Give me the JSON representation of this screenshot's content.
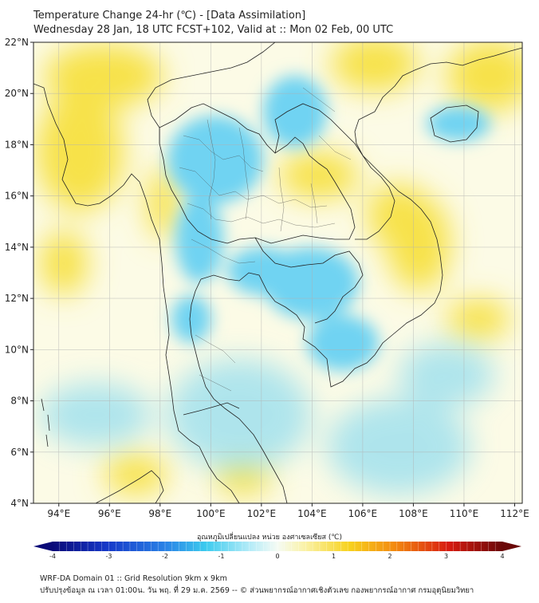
{
  "header": {
    "title_line1": "Temperature Change 24-hr (℃) - [Data Assimilation]",
    "title_line2": "Wednesday 28 Jan, 18 UTC FCST+102, Valid at :: Mon 02 Feb, 00 UTC"
  },
  "map": {
    "lat_labels": [
      "22°N",
      "20°N",
      "18°N",
      "16°N",
      "14°N",
      "12°N",
      "10°N",
      "8°N",
      "6°N",
      "4°N"
    ],
    "lon_labels": [
      "94°E",
      "96°E",
      "98°E",
      "100°E",
      "102°E",
      "104°E",
      "106°E",
      "108°E",
      "110°E",
      "112°E"
    ],
    "background_color": "#fcfbe6",
    "warm_color": "#f7e24a",
    "cool_color": "#6fd3f2"
  },
  "colorbar": {
    "title": "อุณหภูมิเปลี่ยนแปลง หน่วย องศาเซลเซียส (℃)",
    "ticks": [
      "-4",
      "-3",
      "-2",
      "-1",
      "0",
      "1",
      "2",
      "3",
      "4"
    ],
    "min": -4,
    "max": 4
  },
  "footer": {
    "line1": "WRF-DA Domain 01 :: Grid Resolution 9km x 9km",
    "line2": "ปรับปรุงข้อมูล ณ เวลา 01:00น. วัน พฤ. ที่ 29 ม.ค. 2569 -- © ส่วนพยากรณ์อากาศเชิงตัวเลข กองพยากรณ์อากาศ กรมอุตุนิยมวิทยา"
  }
}
